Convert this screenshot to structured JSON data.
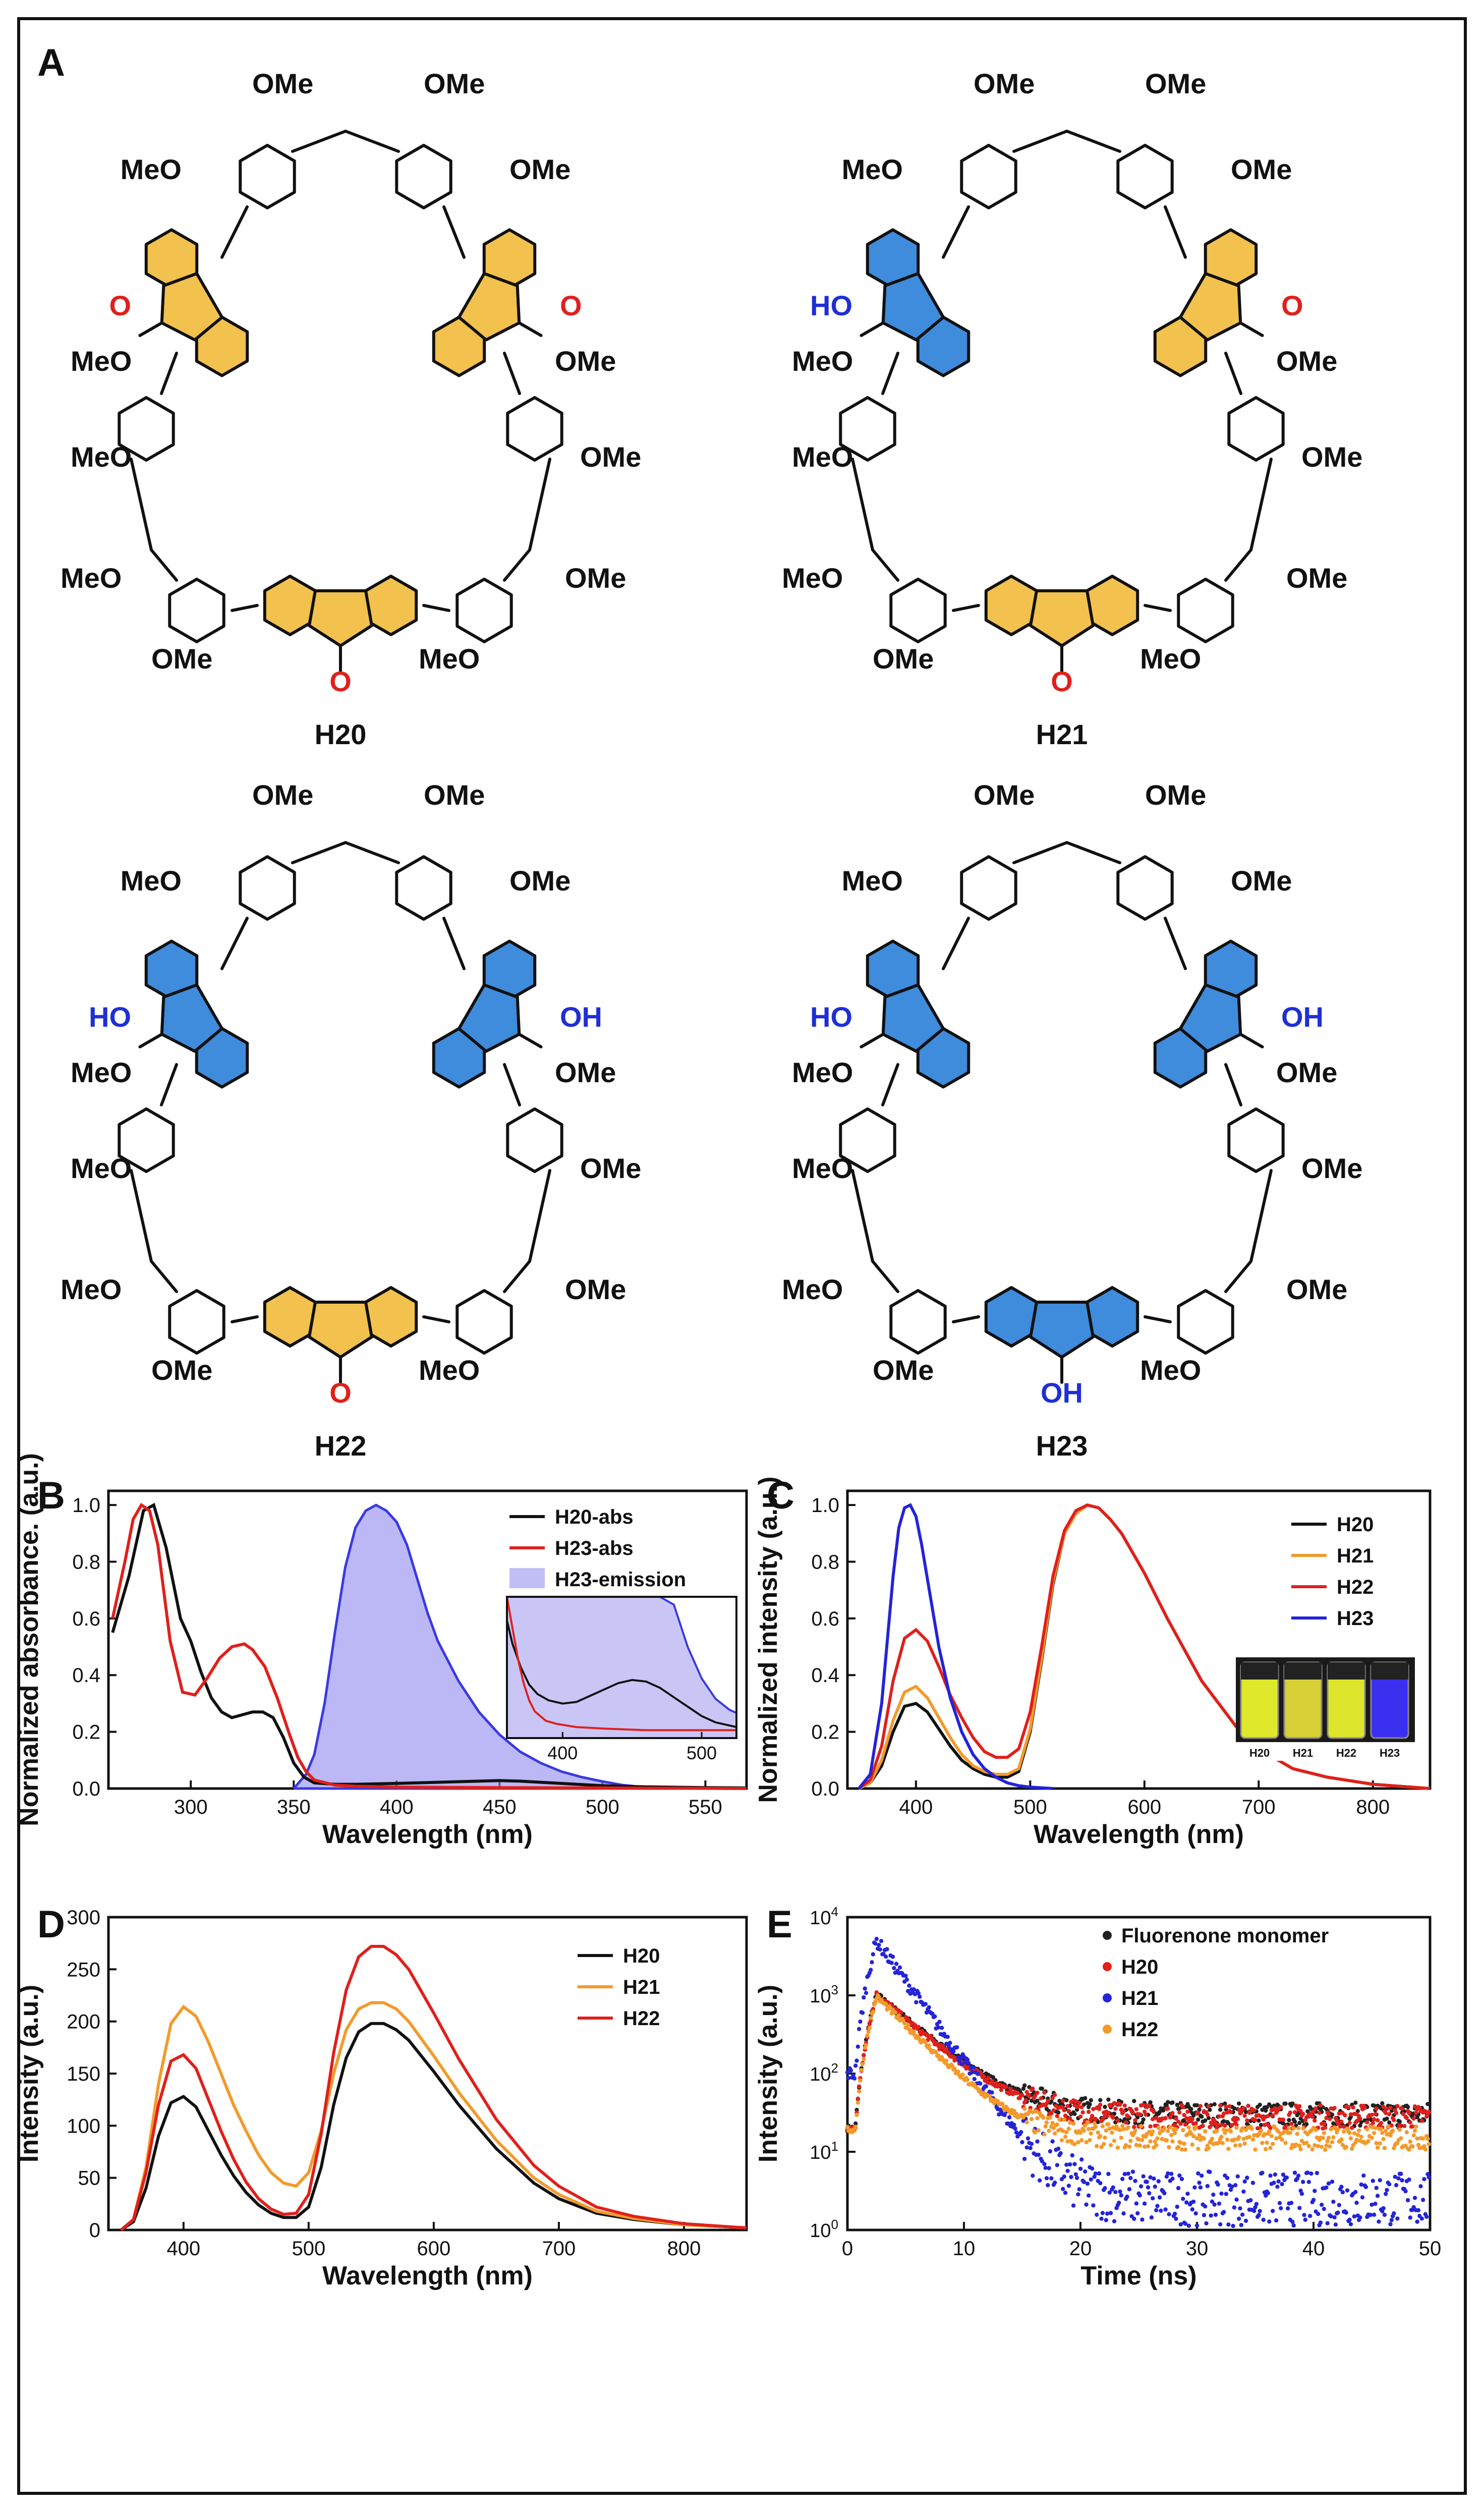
{
  "figure": {
    "panels": {
      "A": "A",
      "B": "B",
      "C": "C",
      "D": "D",
      "E": "E"
    },
    "colors": {
      "fluorenone": "#f2c14e",
      "fluorenol": "#3f8bdc",
      "carbonyl_O": "#e0201c",
      "hydroxyl": "#1f2fd6",
      "bond": "#111111"
    }
  },
  "molecules": {
    "labels": {
      "ome": "OMe",
      "meo": "MeO",
      "ho": "HO",
      "oh": "OH",
      "o": "O"
    },
    "items": [
      {
        "name": "H20",
        "units": [
          "one",
          "one",
          "one"
        ]
      },
      {
        "name": "H21",
        "units": [
          "ol",
          "one",
          "one"
        ]
      },
      {
        "name": "H22",
        "units": [
          "ol",
          "ol",
          "one"
        ]
      },
      {
        "name": "H23",
        "units": [
          "ol",
          "ol",
          "ol"
        ]
      }
    ]
  },
  "chart_data": [
    {
      "panel": "B",
      "type": "line",
      "xlabel": "Wavelength (nm)",
      "ylabel": "Normalized absorbance. (a.u.)",
      "xlim": [
        260,
        570
      ],
      "ylim": [
        0,
        1.05
      ],
      "xticks": [
        300,
        350,
        400,
        450,
        500,
        550
      ],
      "yticks": [
        0.0,
        0.2,
        0.4,
        0.6,
        0.8,
        1.0
      ],
      "legend_position": "top-right",
      "series": [
        {
          "name": "H20-abs",
          "color": "#111111",
          "style": "line",
          "x": [
            262,
            270,
            277,
            282,
            288,
            295,
            300,
            305,
            310,
            315,
            320,
            325,
            330,
            335,
            340,
            345,
            350,
            355,
            360,
            370,
            380,
            400,
            420,
            440,
            450,
            460,
            480,
            500,
            520,
            550,
            570
          ],
          "y": [
            0.55,
            0.75,
            0.98,
            1.0,
            0.85,
            0.6,
            0.52,
            0.41,
            0.32,
            0.27,
            0.25,
            0.26,
            0.27,
            0.27,
            0.25,
            0.18,
            0.09,
            0.04,
            0.02,
            0.015,
            0.015,
            0.018,
            0.022,
            0.026,
            0.028,
            0.026,
            0.018,
            0.01,
            0.006,
            0.003,
            0.002
          ]
        },
        {
          "name": "H23-abs",
          "color": "#e0201c",
          "style": "line",
          "x": [
            262,
            268,
            272,
            276,
            280,
            284,
            290,
            296,
            302,
            308,
            314,
            320,
            326,
            330,
            336,
            342,
            348,
            352,
            356,
            360,
            370,
            380,
            400,
            450,
            500,
            570
          ],
          "y": [
            0.6,
            0.8,
            0.95,
            1.0,
            0.98,
            0.86,
            0.52,
            0.34,
            0.33,
            0.39,
            0.46,
            0.5,
            0.51,
            0.49,
            0.43,
            0.32,
            0.19,
            0.11,
            0.06,
            0.03,
            0.012,
            0.008,
            0.005,
            0.003,
            0.002,
            0.0
          ]
        },
        {
          "name": "H23-emission",
          "color": "#8e88ee",
          "style": "area",
          "x": [
            350,
            356,
            360,
            365,
            370,
            375,
            380,
            385,
            390,
            395,
            400,
            405,
            410,
            415,
            420,
            430,
            440,
            450,
            460,
            470,
            480,
            490,
            500,
            510,
            520
          ],
          "y": [
            0.0,
            0.05,
            0.12,
            0.3,
            0.55,
            0.78,
            0.92,
            0.98,
            1.0,
            0.98,
            0.94,
            0.86,
            0.74,
            0.62,
            0.52,
            0.38,
            0.27,
            0.19,
            0.13,
            0.09,
            0.06,
            0.04,
            0.025,
            0.012,
            0.005
          ]
        }
      ],
      "inset": {
        "xlim": [
          360,
          525
        ],
        "xticks": [
          400,
          500
        ],
        "ylim": [
          0,
          0.09
        ],
        "series": [
          {
            "name": "H20-abs",
            "color": "#111111",
            "x": [
              360,
              364,
              370,
              376,
              382,
              390,
              400,
              410,
              420,
              430,
              440,
              450,
              460,
              470,
              480,
              490,
              500,
              510,
              520,
              525
            ],
            "y": [
              0.075,
              0.06,
              0.045,
              0.034,
              0.028,
              0.024,
              0.022,
              0.023,
              0.027,
              0.031,
              0.035,
              0.037,
              0.036,
              0.032,
              0.026,
              0.02,
              0.014,
              0.01,
              0.008,
              0.007
            ]
          },
          {
            "name": "H23-abs",
            "color": "#e0201c",
            "x": [
              360,
              364,
              368,
              372,
              376,
              380,
              388,
              396,
              410,
              430,
              460,
              490,
              525
            ],
            "y": [
              0.09,
              0.07,
              0.05,
              0.035,
              0.024,
              0.017,
              0.011,
              0.009,
              0.007,
              0.006,
              0.005,
              0.005,
              0.005
            ]
          },
          {
            "name": "H23-emission",
            "color": "#3a3ae0",
            "x": [
              360,
              380,
              400,
              420,
              440,
              460,
              470,
              480,
              490,
              500,
              510,
              520,
              525
            ],
            "y": [
              0.09,
              0.09,
              0.09,
              0.09,
              0.09,
              0.09,
              0.09,
              0.085,
              0.058,
              0.038,
              0.025,
              0.018,
              0.016
            ]
          }
        ]
      }
    },
    {
      "panel": "C",
      "type": "line",
      "xlabel": "Wavelength (nm)",
      "ylabel": "Normalized intensity (a.u.)",
      "xlim": [
        340,
        850
      ],
      "ylim": [
        0,
        1.05
      ],
      "xticks": [
        400,
        500,
        600,
        700,
        800
      ],
      "yticks": [
        0.0,
        0.2,
        0.4,
        0.6,
        0.8,
        1.0
      ],
      "legend_position": "top-right",
      "vial_labels": [
        "H20",
        "H21",
        "H22",
        "H23"
      ],
      "series": [
        {
          "name": "H20",
          "color": "#111111",
          "x": [
            350,
            360,
            370,
            380,
            390,
            400,
            410,
            420,
            430,
            440,
            450,
            460,
            470,
            480,
            490,
            500,
            510,
            520,
            530,
            540,
            550,
            560,
            570,
            580,
            600,
            620,
            650,
            680,
            700,
            730,
            760,
            800,
            850
          ],
          "y": [
            0.0,
            0.02,
            0.08,
            0.2,
            0.29,
            0.3,
            0.27,
            0.21,
            0.15,
            0.1,
            0.07,
            0.05,
            0.04,
            0.04,
            0.06,
            0.2,
            0.45,
            0.72,
            0.9,
            0.97,
            1.0,
            0.99,
            0.95,
            0.9,
            0.76,
            0.6,
            0.38,
            0.22,
            0.14,
            0.07,
            0.04,
            0.015,
            0.0
          ]
        },
        {
          "name": "H21",
          "color": "#f39a2b",
          "x": [
            350,
            360,
            370,
            380,
            390,
            400,
            410,
            420,
            430,
            440,
            450,
            460,
            470,
            480,
            490,
            500,
            510,
            520,
            530,
            540,
            550,
            560,
            570,
            580,
            600,
            620,
            650,
            680,
            700,
            730,
            760,
            800,
            850
          ],
          "y": [
            0.0,
            0.02,
            0.1,
            0.24,
            0.34,
            0.36,
            0.32,
            0.25,
            0.18,
            0.12,
            0.08,
            0.06,
            0.05,
            0.05,
            0.07,
            0.21,
            0.46,
            0.73,
            0.9,
            0.97,
            1.0,
            0.99,
            0.95,
            0.9,
            0.76,
            0.6,
            0.38,
            0.22,
            0.14,
            0.07,
            0.04,
            0.015,
            0.0
          ]
        },
        {
          "name": "H22",
          "color": "#e0201c",
          "x": [
            350,
            360,
            370,
            380,
            390,
            400,
            410,
            420,
            430,
            440,
            450,
            460,
            470,
            480,
            490,
            500,
            510,
            520,
            530,
            540,
            550,
            560,
            570,
            580,
            600,
            620,
            650,
            680,
            700,
            730,
            760,
            800,
            850
          ],
          "y": [
            0.0,
            0.03,
            0.15,
            0.38,
            0.53,
            0.56,
            0.52,
            0.43,
            0.33,
            0.25,
            0.18,
            0.13,
            0.11,
            0.11,
            0.14,
            0.27,
            0.5,
            0.75,
            0.91,
            0.98,
            1.0,
            0.99,
            0.95,
            0.9,
            0.76,
            0.6,
            0.38,
            0.22,
            0.14,
            0.07,
            0.04,
            0.015,
            0.0
          ]
        },
        {
          "name": "H23",
          "color": "#2424d8",
          "x": [
            350,
            360,
            370,
            380,
            385,
            390,
            395,
            400,
            405,
            410,
            420,
            430,
            440,
            450,
            460,
            470,
            480,
            490,
            500,
            520
          ],
          "y": [
            0.0,
            0.05,
            0.3,
            0.75,
            0.92,
            0.99,
            1.0,
            0.96,
            0.86,
            0.74,
            0.5,
            0.32,
            0.2,
            0.12,
            0.07,
            0.04,
            0.02,
            0.01,
            0.005,
            0.0
          ]
        }
      ]
    },
    {
      "panel": "D",
      "type": "line",
      "xlabel": "Wavelength (nm)",
      "ylabel": "Intensity (a.u.)",
      "xlim": [
        340,
        850
      ],
      "ylim": [
        0,
        300
      ],
      "xticks": [
        400,
        500,
        600,
        700,
        800
      ],
      "yticks": [
        0,
        50,
        100,
        150,
        200,
        250,
        300
      ],
      "legend_position": "top-right",
      "series": [
        {
          "name": "H20",
          "color": "#111111",
          "x": [
            350,
            360,
            370,
            380,
            390,
            400,
            410,
            420,
            430,
            440,
            450,
            460,
            470,
            480,
            490,
            500,
            510,
            520,
            530,
            540,
            550,
            560,
            570,
            580,
            600,
            620,
            650,
            680,
            700,
            730,
            760,
            800,
            850
          ],
          "y": [
            0,
            8,
            40,
            90,
            122,
            128,
            118,
            95,
            72,
            52,
            36,
            24,
            16,
            12,
            12,
            22,
            60,
            120,
            165,
            190,
            198,
            198,
            192,
            182,
            152,
            120,
            78,
            45,
            30,
            16,
            10,
            5,
            2
          ]
        },
        {
          "name": "H21",
          "color": "#f39a2b",
          "x": [
            350,
            360,
            370,
            380,
            390,
            400,
            410,
            420,
            430,
            440,
            450,
            460,
            470,
            480,
            490,
            500,
            510,
            520,
            530,
            540,
            550,
            560,
            570,
            580,
            600,
            620,
            650,
            680,
            700,
            730,
            760,
            800,
            850
          ],
          "y": [
            0,
            10,
            60,
            140,
            198,
            214,
            205,
            180,
            150,
            120,
            95,
            72,
            55,
            45,
            42,
            55,
            95,
            150,
            192,
            212,
            218,
            218,
            212,
            200,
            167,
            132,
            86,
            50,
            34,
            18,
            11,
            5,
            2
          ]
        },
        {
          "name": "H22",
          "color": "#e0201c",
          "x": [
            350,
            360,
            370,
            380,
            390,
            400,
            410,
            420,
            430,
            440,
            450,
            460,
            470,
            480,
            490,
            500,
            510,
            520,
            530,
            540,
            550,
            560,
            570,
            580,
            600,
            620,
            650,
            680,
            700,
            730,
            760,
            800,
            850
          ],
          "y": [
            0,
            10,
            55,
            120,
            162,
            168,
            155,
            125,
            95,
            68,
            46,
            30,
            20,
            15,
            16,
            34,
            92,
            170,
            230,
            262,
            272,
            272,
            264,
            250,
            208,
            164,
            106,
            62,
            42,
            22,
            13,
            6,
            2
          ]
        }
      ]
    },
    {
      "panel": "E",
      "type": "scatter",
      "xlabel": "Time (ns)",
      "ylabel": "Intensity (a.u.)",
      "xlim": [
        0,
        50
      ],
      "yscale": "log",
      "ylim": [
        1,
        10000
      ],
      "xticks": [
        0,
        10,
        20,
        30,
        40,
        50
      ],
      "ytick_labels": [
        "10^0",
        "10^1",
        "10^2",
        "10^3",
        "10^4"
      ],
      "legend_position": "top-right",
      "series": [
        {
          "name": "Fluorenone monomer",
          "color": "#222222",
          "peak": 1000,
          "peak_t": 2.5,
          "tau": 3.4,
          "baseline": 30
        },
        {
          "name": "H20",
          "color": "#e0201c",
          "peak": 1000,
          "peak_t": 2.5,
          "tau": 3.3,
          "baseline": 28
        },
        {
          "name": "H21",
          "color": "#2424d8",
          "peak": 5000,
          "peak_t": 2.5,
          "tau": 2.1,
          "baseline": 2.5
        },
        {
          "name": "H22",
          "color": "#f39a2b",
          "peak": 950,
          "peak_t": 2.5,
          "tau": 2.9,
          "baseline": 15
        }
      ]
    }
  ]
}
